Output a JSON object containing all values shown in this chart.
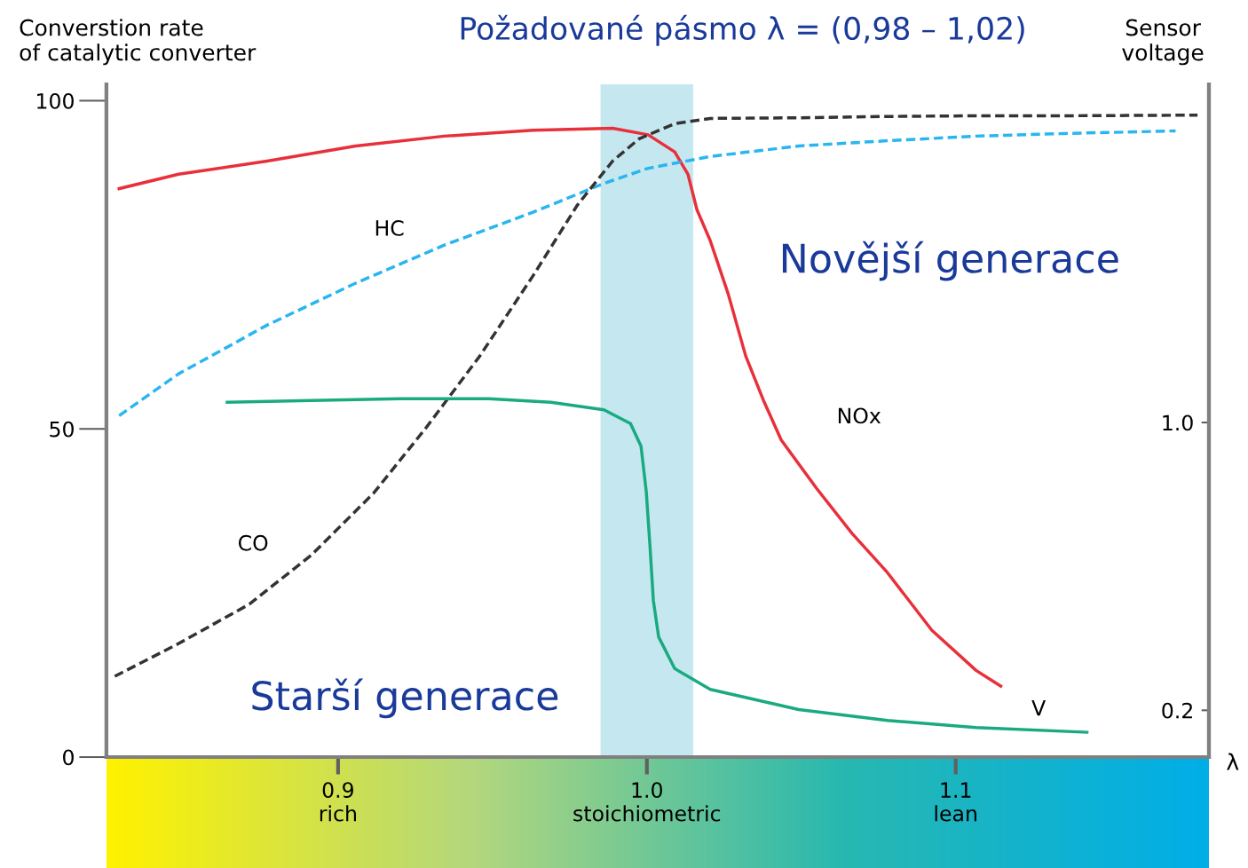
{
  "chart_data": {
    "type": "line",
    "title": "Požadované pásmo λ = (0,98 – 1,02)",
    "xlabel": "λ",
    "ylabel": "Converstion rate\nof catalytic converter",
    "y2label": "Sensor\nvoltage",
    "xlim": [
      0.825,
      1.182
    ],
    "xticks": [
      {
        "value": 0.9,
        "label": "0.9\nrich"
      },
      {
        "value": 1.0,
        "label": "1.0\nstoichiometric"
      },
      {
        "value": 1.1,
        "label": "1.1\nlean"
      }
    ],
    "ylim": [
      0,
      102.5
    ],
    "yticks": [
      0,
      50,
      100
    ],
    "y2lim": [
      0.07,
      1.94
    ],
    "y2ticks": [
      {
        "value": 1.0,
        "label": "1.0"
      },
      {
        "value": 0.2,
        "label": "0.2"
      }
    ],
    "grid": false,
    "legend": false,
    "bands": [
      {
        "axis": "x",
        "from": 0.985,
        "to": 1.015,
        "color": "#bfe4ee"
      }
    ],
    "annotations": [
      "Novější generace",
      "Starší generace"
    ],
    "series": [
      {
        "name": "NOx",
        "color": "#e8303a",
        "line_style": "solid",
        "x": [
          0.8291,
          0.8484,
          0.877,
          0.9057,
          0.9344,
          0.9631,
          0.9889,
          1.0004,
          1.009,
          1.0133,
          1.0162,
          1.0205,
          1.0263,
          1.032,
          1.0377,
          1.0435,
          1.055,
          1.0664,
          1.0779,
          1.0923,
          1.1066,
          1.1146
        ],
        "values": [
          86.6,
          88.8,
          90.8,
          93.1,
          94.6,
          95.5,
          95.8,
          94.8,
          92.2,
          88.8,
          83.4,
          78.7,
          70.6,
          61.1,
          54.4,
          48.3,
          40.9,
          34.1,
          28.1,
          19.3,
          13.2,
          10.8
        ]
      },
      {
        "name": "HC",
        "color": "#29b6f0",
        "line_style": "dashed",
        "x": [
          0.8291,
          0.8484,
          0.877,
          0.9057,
          0.9344,
          0.9631,
          0.9861,
          1.0004,
          1.0205,
          1.0492,
          1.0779,
          1.1066,
          1.1353,
          1.1712
        ],
        "values": [
          52.0,
          58.4,
          65.8,
          72.2,
          78.0,
          83.0,
          87.4,
          89.7,
          91.5,
          93.1,
          93.9,
          94.6,
          95.0,
          95.4
        ]
      },
      {
        "name": "CO",
        "color": "#333333",
        "line_style": "dashed",
        "x": [
          0.8277,
          0.8484,
          0.8713,
          0.8914,
          0.9115,
          0.9287,
          0.9459,
          0.9631,
          0.9775,
          0.9889,
          0.9975,
          1.009,
          1.0205,
          1.0492,
          1.0779,
          1.1066,
          1.1353,
          1.1783
        ],
        "values": [
          12.3,
          17.3,
          23.3,
          30.8,
          40.2,
          50.3,
          61.1,
          73.3,
          84.1,
          90.8,
          94.2,
          96.5,
          97.3,
          97.4,
          97.6,
          97.7,
          97.7,
          97.8
        ]
      },
      {
        "name": "V",
        "color": "#1aaa80",
        "line_style": "solid",
        "axis": "y2",
        "x": [
          0.8641,
          0.8914,
          0.9201,
          0.9488,
          0.9689,
          0.9861,
          0.9947,
          0.9981,
          0.9998,
          1.001,
          1.0021,
          1.0038,
          1.009,
          1.0205,
          1.0492,
          1.0779,
          1.1066,
          1.1425
        ],
        "values": [
          1.056,
          1.061,
          1.066,
          1.066,
          1.056,
          1.035,
          0.997,
          0.934,
          0.808,
          0.657,
          0.505,
          0.404,
          0.316,
          0.258,
          0.202,
          0.172,
          0.152,
          0.139
        ]
      }
    ]
  }
}
